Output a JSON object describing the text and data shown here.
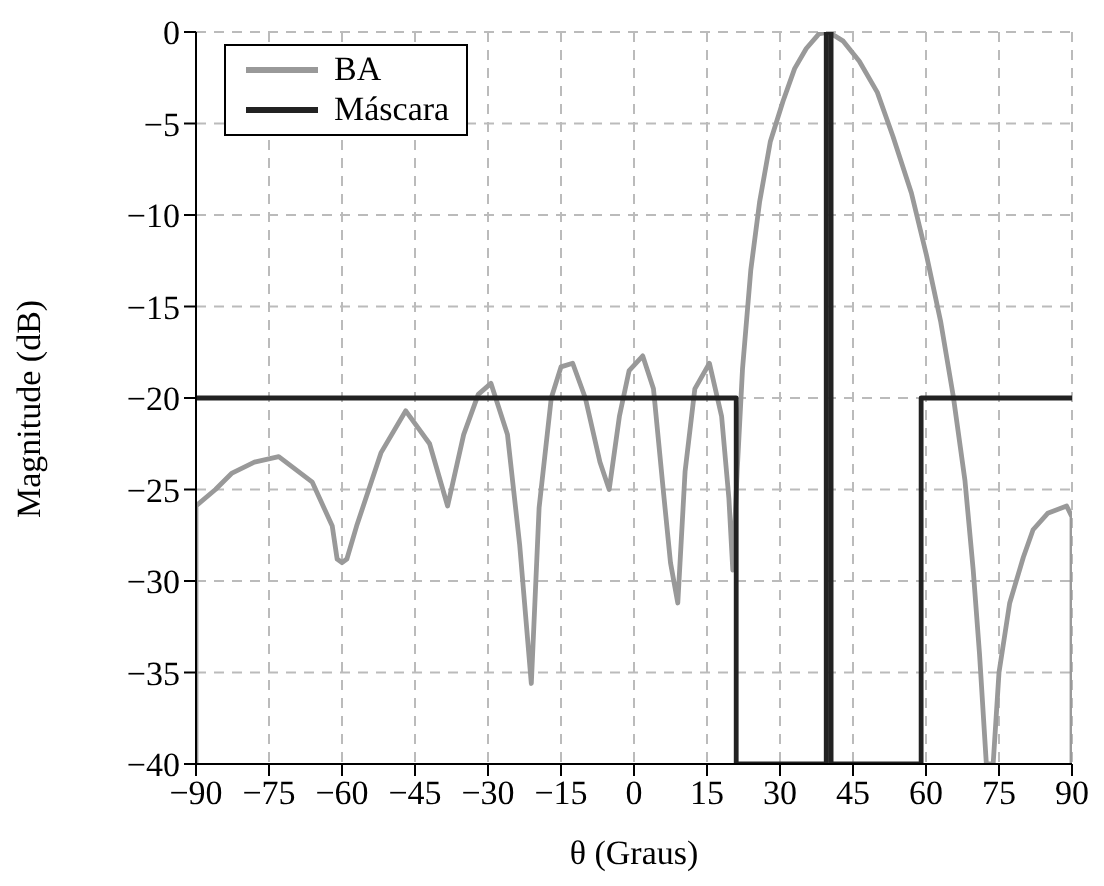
{
  "chart_data": {
    "type": "line",
    "xlabel": "θ (Graus)",
    "ylabel": "Magnitude (dB)",
    "xlim": [
      -90,
      90
    ],
    "xticks": [
      -90,
      -75,
      -60,
      -45,
      -30,
      -15,
      0,
      15,
      30,
      45,
      60,
      75,
      90
    ],
    "ylim": [
      -40,
      0
    ],
    "yticks": [
      -40,
      -35,
      -30,
      -25,
      -20,
      -15,
      -10,
      -5,
      0
    ],
    "grid": true,
    "legend": "top left",
    "line_style": "solid",
    "marker": "none",
    "series": [
      {
        "name": "BA",
        "color": "#999999",
        "x": [
          -90,
          -90,
          -86,
          -82.6,
          -78,
          -73,
          -66.1,
          -62,
          -61,
          -60,
          -59,
          -57,
          -52,
          -46.9,
          -42,
          -38.3,
          -35,
          -32,
          -29.4,
          -26,
          -23.5,
          -21.1,
          -19.5,
          -17,
          -15,
          -12.6,
          -10,
          -7,
          -5.1,
          -3,
          -1,
          1.8,
          4,
          6,
          7.5,
          9,
          10.5,
          12.5,
          15.5,
          18,
          19.5,
          20.3,
          21.2,
          22.3,
          24,
          25.8,
          28,
          30.6,
          33,
          35.4,
          38,
          40,
          43,
          46.3,
          50,
          53.2,
          57,
          60.1,
          63,
          65.6,
          68,
          69.7,
          71,
          72.4,
          73.8,
          75,
          77.2,
          80,
          82,
          85,
          88.9,
          90,
          90
        ],
        "values": [
          -40,
          -25.9,
          -25,
          -24.1,
          -23.5,
          -23.2,
          -24.6,
          -27,
          -28.8,
          -29,
          -28.8,
          -27,
          -23,
          -20.7,
          -22.5,
          -25.9,
          -22,
          -19.8,
          -19.2,
          -22,
          -28,
          -35.6,
          -26,
          -20,
          -18.3,
          -18.1,
          -20,
          -23.5,
          -25,
          -21,
          -18.5,
          -17.7,
          -19.5,
          -25,
          -29,
          -31.2,
          -24,
          -19.5,
          -18.1,
          -21,
          -25.5,
          -29.4,
          -24,
          -18.4,
          -13,
          -9.3,
          -6,
          -3.8,
          -2,
          -0.9,
          -0.1,
          0,
          -0.5,
          -1.6,
          -3.3,
          -5.7,
          -8.8,
          -12.2,
          -15.8,
          -19.9,
          -24.5,
          -29.4,
          -34,
          -40,
          -40,
          -35,
          -31.2,
          -28.7,
          -27.2,
          -26.3,
          -25.9,
          -26.5,
          -40
        ]
      },
      {
        "name": "Máscara",
        "color": "#222222",
        "x": [
          -90,
          21,
          21,
          39.5,
          39.5,
          40.5,
          40.5,
          59,
          59,
          90
        ],
        "values": [
          -20,
          -20,
          -40,
          -40,
          0,
          0,
          -40,
          -40,
          -20,
          -20
        ]
      }
    ]
  }
}
